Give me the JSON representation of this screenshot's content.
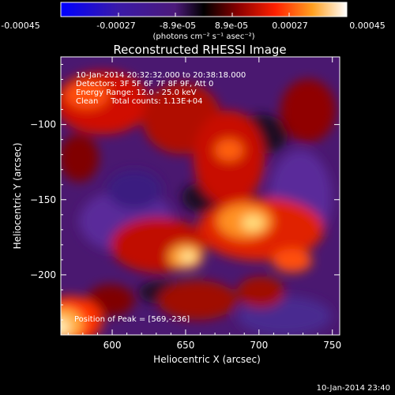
{
  "colorbar": {
    "tick_labels": [
      "-0.00045",
      "-0.00027",
      "-8.9e-05",
      "8.9e-05",
      "0.00027",
      "0.00045"
    ],
    "units_label": "(photons cm⁻² s⁻¹ asec⁻²)",
    "range": [
      -0.00045,
      0.00045
    ]
  },
  "chart_data": {
    "type": "heatmap",
    "title": "Reconstructed RHESSI Image",
    "xlabel": "Heliocentric X (arcsec)",
    "ylabel": "Heliocentric Y (arcsec)",
    "xlim": [
      565,
      755
    ],
    "ylim": [
      -240,
      -55
    ],
    "x_ticks": [
      600,
      650,
      700,
      750
    ],
    "y_ticks": [
      -100,
      -150,
      -200
    ],
    "annotations": [
      "10-Jan-2014 20:32:32.000 to 20:38:18.000",
      "Detectors: 3F 5F 6F 7F 8F 9F, Att 0",
      "Energy Range: 12.0 - 25.0 keV",
      "Clean     Total counts: 1.13E+04"
    ],
    "peak_label": "Position of Peak = [569,-236]",
    "peak": [
      569,
      -236
    ]
  },
  "footer": {
    "timestamp": "10-Jan-2014 23:40"
  }
}
